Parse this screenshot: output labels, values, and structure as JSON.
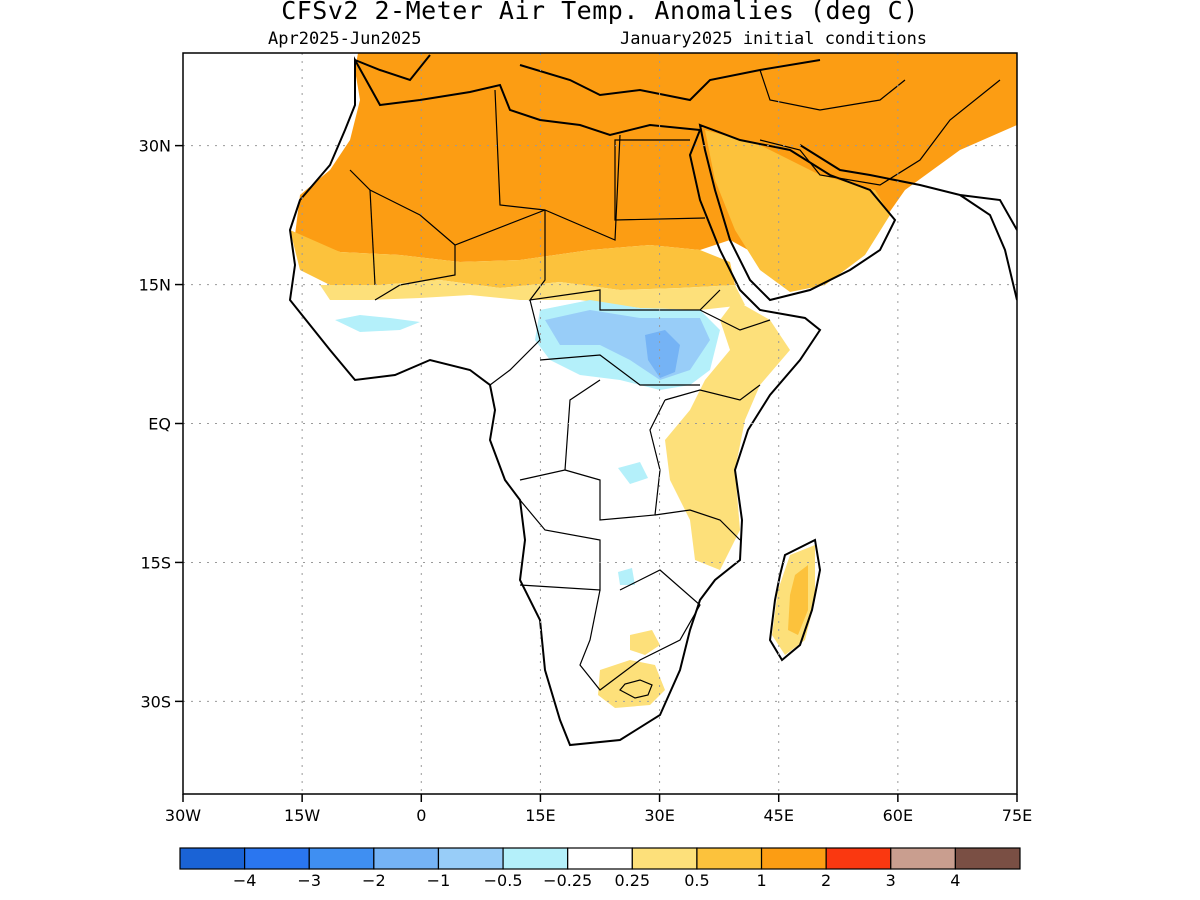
{
  "title": "CFSv2 2-Meter Air Temp. Anomalies (deg C)",
  "subtitle_left": "Apr2025-Jun2025",
  "subtitle_right": "January2025 initial conditions",
  "map": {
    "lon_range": [
      -30,
      75
    ],
    "lat_range": [
      -40,
      40
    ],
    "lat_ticks": [
      {
        "value": 30,
        "label": "30N"
      },
      {
        "value": 15,
        "label": "15N"
      },
      {
        "value": 0,
        "label": "EQ"
      },
      {
        "value": -15,
        "label": "15S"
      },
      {
        "value": -30,
        "label": "30S"
      }
    ],
    "lon_ticks": [
      {
        "value": -30,
        "label": "30W"
      },
      {
        "value": -15,
        "label": "15W"
      },
      {
        "value": 0,
        "label": "0"
      },
      {
        "value": 15,
        "label": "15E"
      },
      {
        "value": 30,
        "label": "30E"
      },
      {
        "value": 45,
        "label": "45E"
      },
      {
        "value": 60,
        "label": "60E"
      },
      {
        "value": 75,
        "label": "75E"
      }
    ],
    "grid": "dotted"
  },
  "colorbar": {
    "colors": [
      "#1a63d6",
      "#2a76f0",
      "#3f8ff2",
      "#75b3f5",
      "#98cdf8",
      "#b4f0fa",
      "#ffffff",
      "#fde07a",
      "#fcc23c",
      "#fc9d13",
      "#fa3810",
      "#c99e8f",
      "#7a4f44"
    ],
    "labels": [
      "-4",
      "-3",
      "-2",
      "-1",
      "-0.5",
      "-0.25",
      "0.25",
      "0.5",
      "1",
      "2",
      "3",
      "4"
    ]
  }
}
